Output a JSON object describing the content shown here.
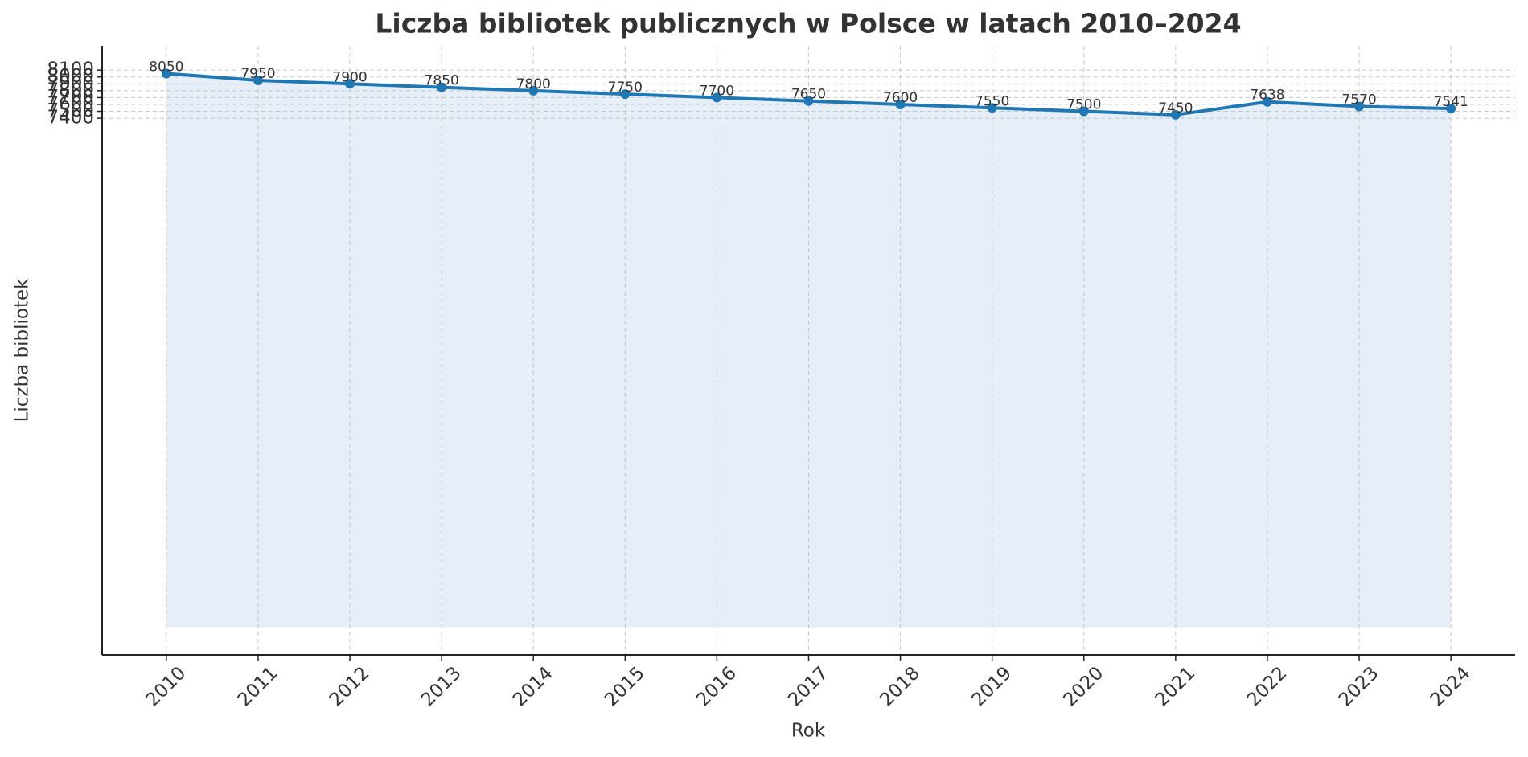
{
  "chart_data": {
    "type": "line",
    "title": "Liczba bibliotek publicznych w Polsce w latach 2010–2024",
    "x_label": "Rok",
    "y_label": "Liczba bibliotek",
    "x": [
      2010,
      2011,
      2012,
      2013,
      2014,
      2015,
      2016,
      2017,
      2018,
      2019,
      2020,
      2021,
      2022,
      2023,
      2024
    ],
    "series": [
      {
        "name": "Liczba bibliotek",
        "color": "#1f77b4",
        "values": [
          8050,
          7950,
          7900,
          7850,
          7800,
          7750,
          7700,
          7650,
          7600,
          7550,
          7500,
          7450,
          7638,
          7570,
          7541
        ]
      }
    ],
    "fill_color": "#e6eef7",
    "xlim": [
      2009.3,
      2024.7
    ],
    "xticks": [
      2010,
      2011,
      2012,
      2013,
      2014,
      2015,
      2016,
      2017,
      2018,
      2019,
      2020,
      2021,
      2022,
      2023,
      2024
    ],
    "ylim": [
      -402.5,
      8452.5
    ],
    "yticks": [
      7400,
      7500,
      7600,
      7700,
      7800,
      7900,
      8000,
      8100
    ],
    "grid": true
  }
}
